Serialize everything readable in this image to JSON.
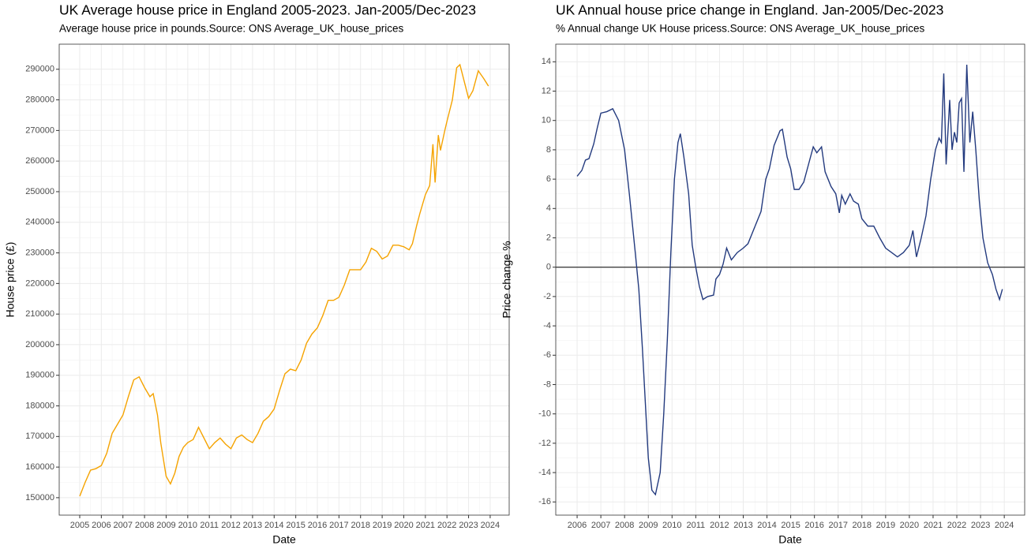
{
  "chart_data": [
    {
      "type": "line",
      "title": "UK Average house price in England 2005-2023. Jan-2005/Dec-2023",
      "subtitle": "Average house price in pounds.Source: ONS Average_UK_house_prices",
      "x_label": "Date",
      "y_label": "House price (£)",
      "color": "#f5a300",
      "grid": true,
      "xlim": [
        2004.05,
        2024.88
      ],
      "ylim": [
        144300,
        298200
      ],
      "xticks": [
        2005,
        2006,
        2007,
        2008,
        2009,
        2010,
        2011,
        2012,
        2013,
        2014,
        2015,
        2016,
        2017,
        2018,
        2019,
        2020,
        2021,
        2022,
        2023,
        2024
      ],
      "yticks": [
        150000,
        160000,
        170000,
        180000,
        190000,
        200000,
        210000,
        220000,
        230000,
        240000,
        250000,
        260000,
        270000,
        280000,
        290000
      ],
      "x": [
        2005.0,
        2005.25,
        2005.5,
        2005.75,
        2006.0,
        2006.25,
        2006.5,
        2006.75,
        2007.0,
        2007.25,
        2007.5,
        2007.75,
        2008.0,
        2008.25,
        2008.4,
        2008.6,
        2008.75,
        2009.0,
        2009.2,
        2009.4,
        2009.6,
        2009.8,
        2010.0,
        2010.25,
        2010.5,
        2010.75,
        2011.0,
        2011.25,
        2011.5,
        2011.75,
        2012.0,
        2012.25,
        2012.5,
        2012.75,
        2013.0,
        2013.25,
        2013.5,
        2013.75,
        2014.0,
        2014.25,
        2014.5,
        2014.75,
        2015.0,
        2015.25,
        2015.5,
        2015.75,
        2016.0,
        2016.25,
        2016.5,
        2016.75,
        2017.0,
        2017.25,
        2017.5,
        2017.75,
        2018.0,
        2018.25,
        2018.5,
        2018.75,
        2019.0,
        2019.25,
        2019.5,
        2019.75,
        2020.0,
        2020.25,
        2020.4,
        2020.6,
        2020.75,
        2021.0,
        2021.2,
        2021.35,
        2021.45,
        2021.6,
        2021.7,
        2021.9,
        2022.0,
        2022.25,
        2022.45,
        2022.6,
        2022.8,
        2023.0,
        2023.2,
        2023.45,
        2023.7,
        2023.92
      ],
      "values": [
        150500,
        155000,
        159000,
        159500,
        160500,
        164500,
        171000,
        174000,
        177000,
        183000,
        188500,
        189500,
        186000,
        183000,
        184000,
        177000,
        168000,
        157000,
        154500,
        158000,
        163500,
        166500,
        168000,
        169000,
        173000,
        169500,
        166000,
        168000,
        169500,
        167500,
        166000,
        169500,
        170500,
        169000,
        168000,
        171000,
        175000,
        176500,
        179000,
        185000,
        190500,
        192000,
        191500,
        195000,
        200500,
        203500,
        205500,
        209500,
        214500,
        214500,
        215500,
        219500,
        224500,
        224500,
        224500,
        227000,
        231500,
        230500,
        228000,
        229000,
        232500,
        232500,
        232000,
        231000,
        233000,
        239000,
        243000,
        249000,
        252000,
        265500,
        253000,
        268500,
        263500,
        270000,
        273000,
        280000,
        290500,
        291500,
        286000,
        280500,
        283000,
        289500,
        287000,
        284500
      ]
    },
    {
      "type": "line",
      "title": "UK Annual house price change in England. Jan-2005/Dec-2023",
      "subtitle": "% Annual change UK House pricess.Source: ONS Average_UK_house_prices",
      "x_label": "Date",
      "y_label": "Price change %",
      "color": "#233a7e",
      "grid": true,
      "reference_line": 0,
      "xlim": [
        2005.1,
        2024.86
      ],
      "ylim": [
        -16.9,
        15.2
      ],
      "xticks": [
        2006,
        2007,
        2008,
        2009,
        2010,
        2011,
        2012,
        2013,
        2014,
        2015,
        2016,
        2017,
        2018,
        2019,
        2020,
        2021,
        2022,
        2023,
        2024
      ],
      "yticks": [
        -16,
        -14,
        -12,
        -10,
        -8,
        -6,
        -4,
        -2,
        0,
        2,
        4,
        6,
        8,
        10,
        12,
        14
      ],
      "x": [
        2006.0,
        2006.2,
        2006.35,
        2006.5,
        2006.7,
        2006.85,
        2007.0,
        2007.25,
        2007.5,
        2007.75,
        2008.0,
        2008.2,
        2008.45,
        2008.6,
        2008.75,
        2008.9,
        2009.0,
        2009.15,
        2009.3,
        2009.5,
        2009.65,
        2009.8,
        2009.95,
        2010.1,
        2010.25,
        2010.35,
        2010.5,
        2010.7,
        2010.85,
        2011.0,
        2011.15,
        2011.3,
        2011.5,
        2011.75,
        2011.85,
        2012.0,
        2012.15,
        2012.3,
        2012.5,
        2012.75,
        2013.0,
        2013.2,
        2013.5,
        2013.75,
        2013.95,
        2014.1,
        2014.3,
        2014.55,
        2014.65,
        2014.85,
        2015.0,
        2015.15,
        2015.35,
        2015.55,
        2015.75,
        2015.95,
        2016.1,
        2016.3,
        2016.45,
        2016.7,
        2016.9,
        2017.05,
        2017.15,
        2017.3,
        2017.5,
        2017.65,
        2017.85,
        2018.0,
        2018.25,
        2018.5,
        2018.75,
        2019.0,
        2019.25,
        2019.5,
        2019.75,
        2020.0,
        2020.15,
        2020.3,
        2020.5,
        2020.7,
        2020.9,
        2021.1,
        2021.25,
        2021.35,
        2021.45,
        2021.55,
        2021.7,
        2021.8,
        2021.9,
        2022.0,
        2022.1,
        2022.2,
        2022.3,
        2022.42,
        2022.55,
        2022.67,
        2022.8,
        2022.95,
        2023.1,
        2023.3,
        2023.5,
        2023.65,
        2023.8,
        2023.92
      ],
      "values": [
        6.2,
        6.6,
        7.3,
        7.4,
        8.4,
        9.5,
        10.5,
        10.6,
        10.8,
        10.0,
        8.0,
        5.0,
        1.0,
        -1.5,
        -5.5,
        -10,
        -13,
        -15.2,
        -15.5,
        -14,
        -10,
        -5,
        1,
        6,
        8.5,
        9.1,
        7.5,
        5,
        1.5,
        0,
        -1.3,
        -2.2,
        -2.0,
        -1.9,
        -0.8,
        -0.5,
        0.2,
        1.3,
        0.5,
        1.0,
        1.3,
        1.6,
        2.8,
        3.8,
        6.0,
        6.7,
        8.3,
        9.3,
        9.4,
        7.5,
        6.7,
        5.3,
        5.3,
        5.8,
        7.0,
        8.2,
        7.8,
        8.2,
        6.5,
        5.5,
        5.0,
        3.7,
        4.9,
        4.3,
        5.0,
        4.5,
        4.3,
        3.3,
        2.8,
        2.8,
        2.0,
        1.3,
        1.0,
        0.7,
        1.0,
        1.5,
        2.5,
        0.7,
        2.0,
        3.5,
        6.0,
        8.0,
        8.8,
        8.5,
        13.2,
        7.0,
        11.4,
        8.0,
        9.2,
        8.5,
        11.2,
        11.5,
        6.5,
        13.8,
        8.5,
        10.6,
        8.0,
        4.5,
        2.0,
        0.3,
        -0.5,
        -1.5,
        -2.2,
        -1.5
      ]
    }
  ]
}
